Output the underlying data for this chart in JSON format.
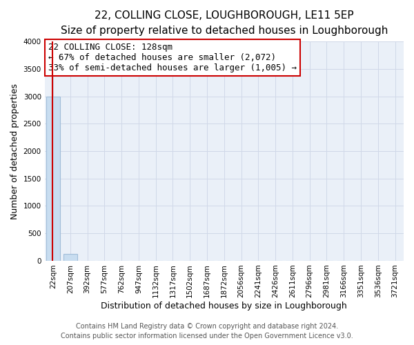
{
  "title_line1": "22, COLLING CLOSE, LOUGHBOROUGH, LE11 5EP",
  "title_line2": "Size of property relative to detached houses in Loughborough",
  "xlabel": "Distribution of detached houses by size in Loughborough",
  "ylabel": "Number of detached properties",
  "bar_labels": [
    "22sqm",
    "207sqm",
    "392sqm",
    "577sqm",
    "762sqm",
    "947sqm",
    "1132sqm",
    "1317sqm",
    "1502sqm",
    "1687sqm",
    "1872sqm",
    "2056sqm",
    "2241sqm",
    "2426sqm",
    "2611sqm",
    "2796sqm",
    "2981sqm",
    "3166sqm",
    "3351sqm",
    "3536sqm",
    "3721sqm"
  ],
  "bar_values": [
    3000,
    120,
    0,
    0,
    0,
    0,
    0,
    0,
    0,
    0,
    0,
    0,
    0,
    0,
    0,
    0,
    0,
    0,
    0,
    0,
    0
  ],
  "bar_color": "#c8ddf0",
  "bar_edgecolor": "#a0bcd8",
  "highlight_line_color": "#cc0000",
  "annotation_line1": "22 COLLING CLOSE: 128sqm",
  "annotation_line2": "← 67% of detached houses are smaller (2,072)",
  "annotation_line3": "33% of semi-detached houses are larger (1,005) →",
  "annotation_box_edgecolor": "#cc0000",
  "annotation_box_facecolor": "#ffffff",
  "ylim": [
    0,
    4000
  ],
  "yticks": [
    0,
    500,
    1000,
    1500,
    2000,
    2500,
    3000,
    3500,
    4000
  ],
  "grid_color": "#d0d8e8",
  "background_color": "#eaf0f8",
  "footer_line1": "Contains HM Land Registry data © Crown copyright and database right 2024.",
  "footer_line2": "Contains public sector information licensed under the Open Government Licence v3.0.",
  "title_fontsize": 11,
  "subtitle_fontsize": 9.5,
  "axis_label_fontsize": 9,
  "tick_fontsize": 7.5,
  "footer_fontsize": 7,
  "annotation_fontsize": 9
}
